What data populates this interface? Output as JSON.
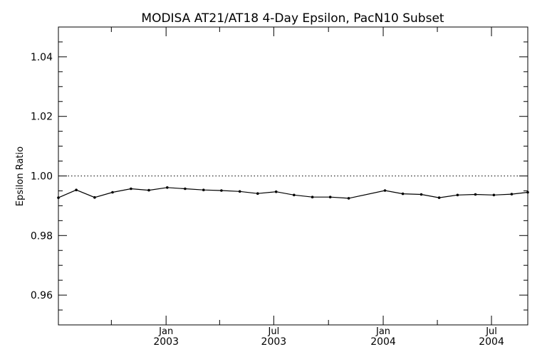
{
  "chart_data": {
    "type": "line",
    "title": "MODISA AT21/AT18 4-Day Epsilon, PacN10 Subset",
    "xlabel": "",
    "ylabel": "Epsilon Ratio",
    "x_axis": {
      "kind": "date",
      "range": [
        "2002-07-04",
        "2004-08-31"
      ],
      "major_ticks": [
        {
          "date": "2003-01-01",
          "label_line1": "Jan",
          "label_line2": "2003"
        },
        {
          "date": "2003-07-01",
          "label_line1": "Jul",
          "label_line2": "2003"
        },
        {
          "date": "2004-01-01",
          "label_line1": "Jan",
          "label_line2": "2004"
        },
        {
          "date": "2004-07-01",
          "label_line1": "Jul",
          "label_line2": "2004"
        }
      ],
      "minor_tick_dates": [
        "2002-10-01",
        "2003-04-01",
        "2003-10-01",
        "2004-04-01"
      ]
    },
    "y_axis": {
      "range": [
        0.95,
        1.05
      ],
      "major_ticks": [
        0.96,
        0.98,
        1.0,
        1.02,
        1.04
      ],
      "tick_labels": [
        "0.96",
        "0.98",
        "1.00",
        "1.02",
        "1.04"
      ],
      "minor_step": 0.005
    },
    "reference_line": {
      "y": 1.0,
      "style": "dotted"
    },
    "grid": false,
    "series": [
      {
        "points": [
          {
            "x": "2002-07-04",
            "y": 0.9927
          },
          {
            "x": "2002-08-03",
            "y": 0.9953
          },
          {
            "x": "2002-09-03",
            "y": 0.9928
          },
          {
            "x": "2002-10-03",
            "y": 0.9945
          },
          {
            "x": "2002-11-03",
            "y": 0.9957
          },
          {
            "x": "2002-12-03",
            "y": 0.9952
          },
          {
            "x": "2003-01-03",
            "y": 0.9961
          },
          {
            "x": "2003-02-02",
            "y": 0.9957
          },
          {
            "x": "2003-03-05",
            "y": 0.9953
          },
          {
            "x": "2003-04-04",
            "y": 0.9951
          },
          {
            "x": "2003-05-05",
            "y": 0.9948
          },
          {
            "x": "2003-06-04",
            "y": 0.9941
          },
          {
            "x": "2003-07-05",
            "y": 0.9947
          },
          {
            "x": "2003-08-04",
            "y": 0.9936
          },
          {
            "x": "2003-09-04",
            "y": 0.9929
          },
          {
            "x": "2003-10-04",
            "y": 0.9929
          },
          {
            "x": "2003-11-04",
            "y": 0.9925
          },
          {
            "x": "2004-01-04",
            "y": 0.9951
          },
          {
            "x": "2004-02-03",
            "y": 0.994
          },
          {
            "x": "2004-03-05",
            "y": 0.9938
          },
          {
            "x": "2004-04-04",
            "y": 0.9927
          },
          {
            "x": "2004-05-05",
            "y": 0.9936
          },
          {
            "x": "2004-06-04",
            "y": 0.9938
          },
          {
            "x": "2004-07-05",
            "y": 0.9936
          },
          {
            "x": "2004-08-04",
            "y": 0.9939
          },
          {
            "x": "2004-08-31",
            "y": 0.9945
          }
        ]
      }
    ]
  }
}
